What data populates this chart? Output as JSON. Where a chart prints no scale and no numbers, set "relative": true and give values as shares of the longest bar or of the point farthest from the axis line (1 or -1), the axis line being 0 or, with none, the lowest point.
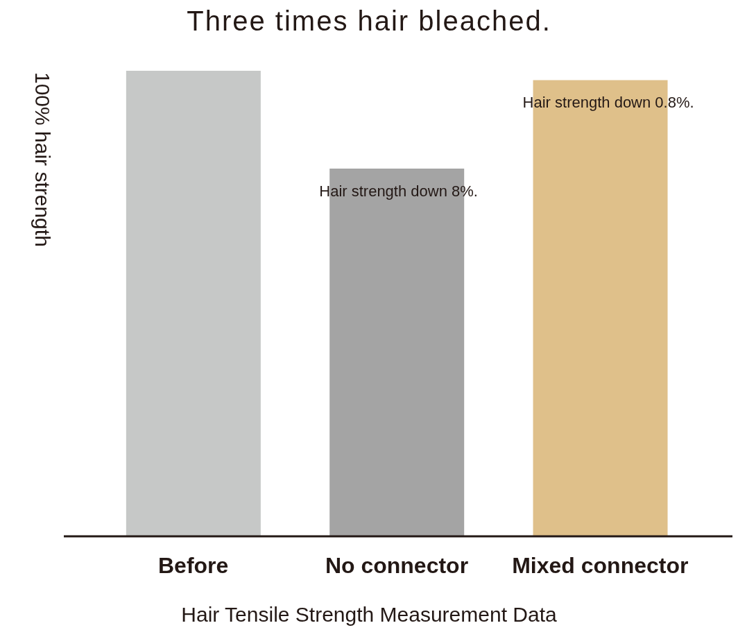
{
  "chart_data": {
    "type": "bar",
    "title": "Three times hair bleached.",
    "ylabel": "100% hair strength",
    "categories": [
      "Before",
      "No connector",
      "Mixed connector"
    ],
    "values": [
      1,
      0.79,
      0.98
    ],
    "colors": [
      "#c6c8c7",
      "#a4a4a4",
      "#dfc08a"
    ],
    "relative": true,
    "legend": false,
    "grid": false,
    "annotations": [
      "Hair Tensile Strength Measurement Data",
      {
        "text": "Hair strength down 8%.",
        "x": "No connector",
        "y": 0.79
      },
      {
        "text": "Hair strength down 0.8%.",
        "x": "Mixed connector",
        "y": 0.98
      }
    ]
  }
}
